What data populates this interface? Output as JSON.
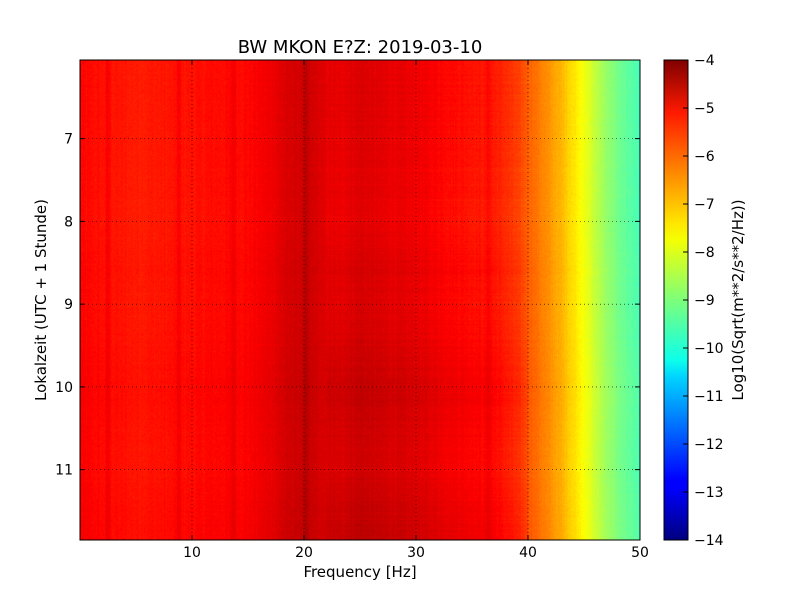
{
  "chart_data": {
    "type": "heatmap",
    "title": "BW MKON E?Z: 2019-03-10",
    "xlabel": "Frequency [Hz]",
    "ylabel": "Lokalzeit (UTC + 1 Stunde)",
    "xlim": [
      0,
      50
    ],
    "ylim": [
      11.85,
      6.05
    ],
    "y_inverted": true,
    "xticks": [
      10,
      20,
      30,
      40,
      50
    ],
    "yticks": [
      7,
      8,
      9,
      10,
      11
    ],
    "grid": true,
    "colormap": "jet",
    "colorbar": {
      "label": "Log10(Sqrt(m**2/s**2/Hz))",
      "range": [
        -14,
        -4
      ],
      "ticks": [
        -4,
        -5,
        -6,
        -7,
        -8,
        -9,
        -10,
        -11,
        -12,
        -13,
        -14
      ]
    },
    "spectral_profile": {
      "frequency_hz": [
        0,
        2,
        5,
        8,
        10,
        12,
        15,
        17,
        18,
        19,
        20,
        21,
        22,
        23,
        25,
        27,
        30,
        33,
        35,
        37,
        38,
        39,
        40,
        41,
        42,
        43,
        44,
        45,
        46,
        47,
        48,
        49,
        50
      ],
      "log10_psd": [
        -5.3,
        -5.4,
        -5.5,
        -5.45,
        -5.4,
        -5.35,
        -5.3,
        -5.1,
        -4.95,
        -4.85,
        -4.8,
        -4.85,
        -5.0,
        -5.05,
        -4.9,
        -5.0,
        -5.1,
        -5.3,
        -5.4,
        -5.5,
        -5.65,
        -5.85,
        -6.15,
        -6.45,
        -6.75,
        -7.05,
        -7.45,
        -7.85,
        -8.35,
        -8.75,
        -9.1,
        -9.35,
        -9.55
      ]
    },
    "vertical_lines_hz": [
      2.5,
      8.8,
      13.7,
      20.2,
      36.5
    ],
    "time_profile": {
      "local_hour": [
        6.05,
        7,
        8,
        8.6,
        9,
        9.5,
        10,
        10.5,
        11,
        11.5,
        11.85
      ],
      "offset_log10": [
        0.0,
        0.0,
        -0.05,
        0.1,
        0.05,
        0.15,
        0.3,
        0.2,
        0.15,
        0.3,
        0.35
      ]
    }
  }
}
